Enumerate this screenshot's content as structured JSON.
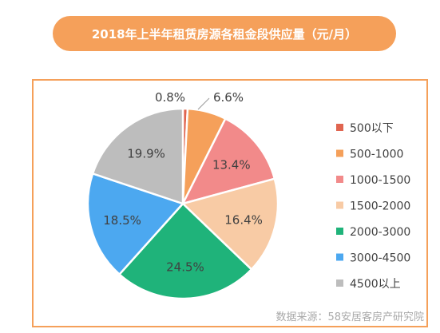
{
  "title": "2018年上半年租赁房源各租金段供应量（元/月）",
  "source": "数据来源：58安居客房产研究院",
  "chart_data": {
    "type": "pie",
    "title": "2018年上半年租赁房源各租金段供应量（元/月）",
    "legend_position": "right",
    "slices": [
      {
        "label": "500以下",
        "value": 0.8,
        "display": "0.8%",
        "color": "#e06550"
      },
      {
        "label": "500-1000",
        "value": 6.6,
        "display": "6.6%",
        "color": "#f5a05a"
      },
      {
        "label": "1000-1500",
        "value": 13.4,
        "display": "13.4%",
        "color": "#f28a8a"
      },
      {
        "label": "1500-2000",
        "value": 16.4,
        "display": "16.4%",
        "color": "#f8cba5"
      },
      {
        "label": "2000-3000",
        "value": 24.5,
        "display": "24.5%",
        "color": "#1fb37a"
      },
      {
        "label": "3000-4500",
        "value": 18.5,
        "display": "18.5%",
        "color": "#4ca8f0"
      },
      {
        "label": "4500以上",
        "value": 19.9,
        "display": "19.9%",
        "color": "#bdbdbd"
      }
    ]
  }
}
